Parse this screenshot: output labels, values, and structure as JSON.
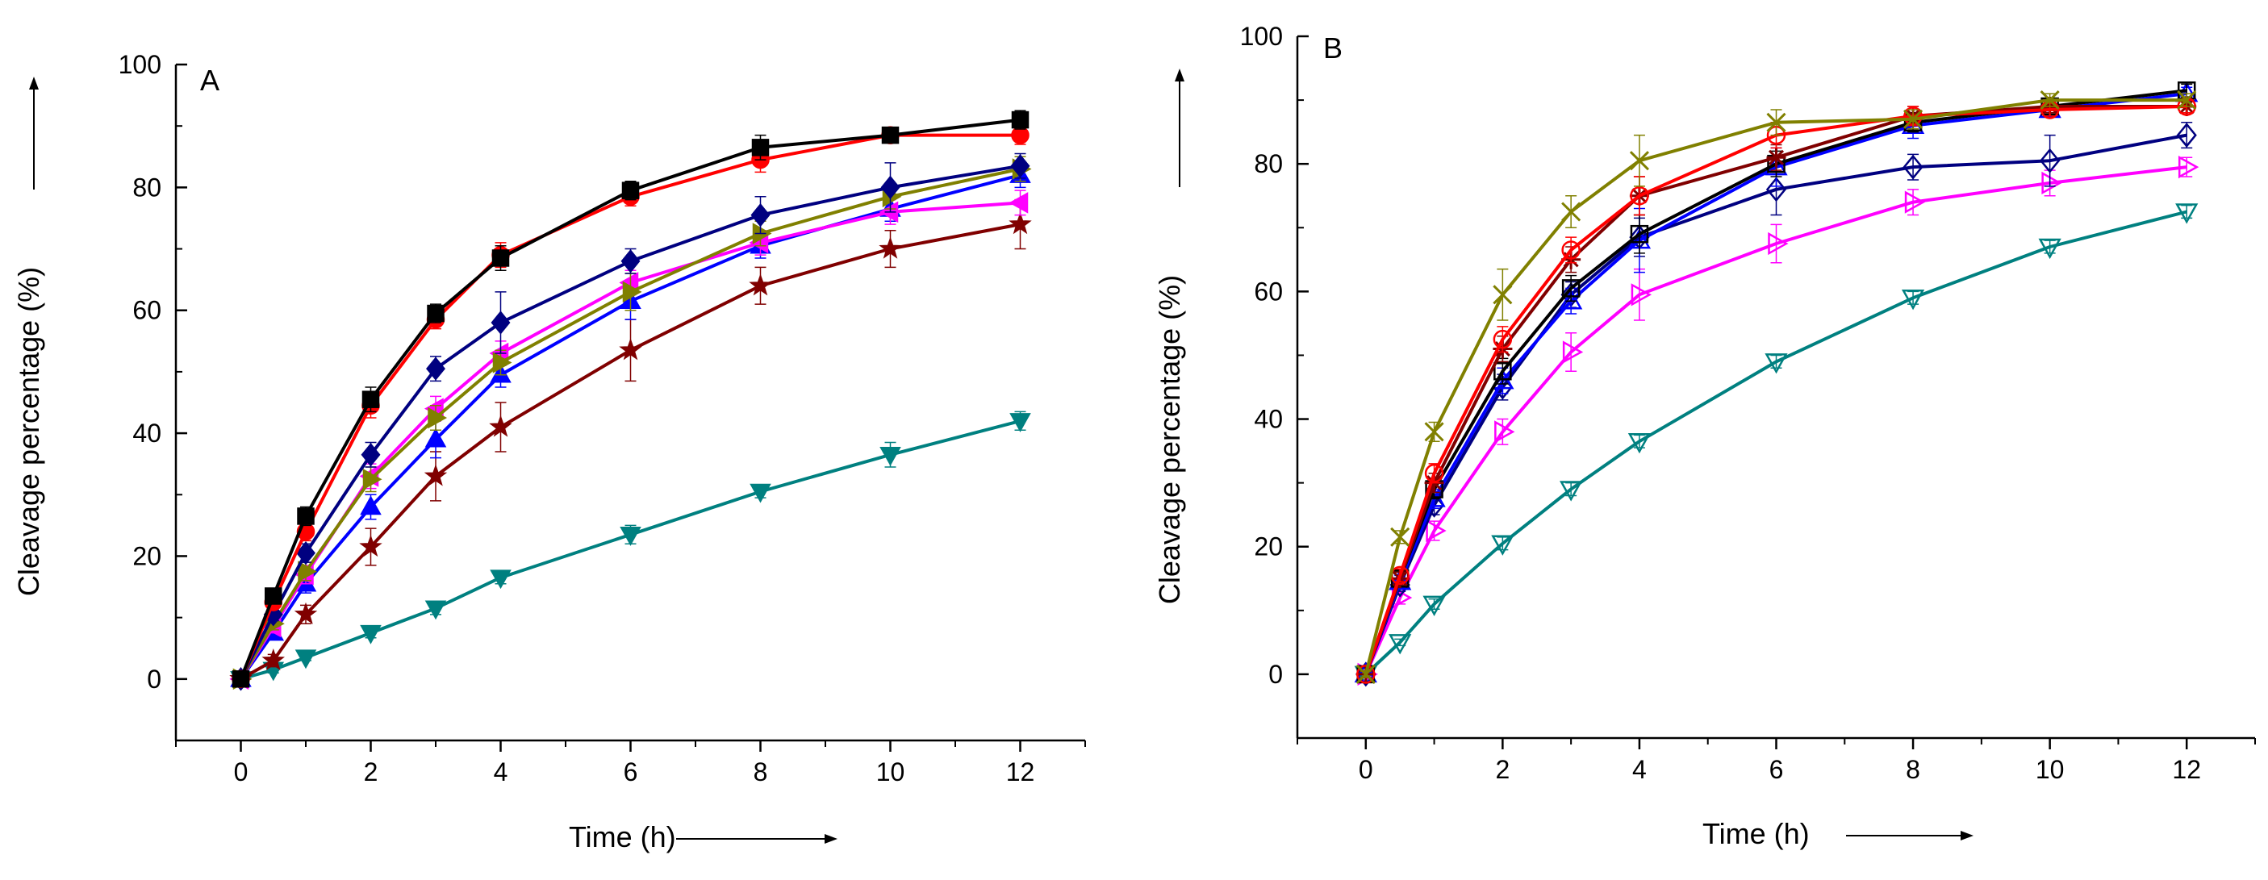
{
  "chart_data": [
    {
      "type": "line",
      "panel_label": "A",
      "xlabel": "Time (h)",
      "ylabel": "Cleavage percentage (%)",
      "xlim": [
        -1,
        13
      ],
      "ylim": [
        -10,
        100
      ],
      "x_ticks": [
        "0",
        "2",
        "4",
        "6",
        "8",
        "10",
        "12"
      ],
      "y_ticks": [
        "0",
        "20",
        "40",
        "60",
        "80",
        "100"
      ],
      "marker_fill": "filled",
      "x": [
        0,
        0.5,
        1,
        2,
        3,
        4,
        6,
        8,
        10,
        12
      ],
      "series": [
        {
          "name": "square",
          "color": "#000000",
          "marker": "square",
          "values": [
            0,
            13.5,
            26.5,
            45.5,
            59.5,
            68.5,
            79.5,
            86.5,
            88.5,
            91
          ],
          "err": [
            0.5,
            1,
            1.5,
            2,
            1.5,
            2,
            1.5,
            2,
            1,
            1.5
          ]
        },
        {
          "name": "circle",
          "color": "#ff0000",
          "marker": "circle",
          "values": [
            0,
            12.5,
            24,
            44.5,
            58.5,
            69,
            78.5,
            84.5,
            88.5,
            88.5
          ],
          "err": [
            0.5,
            1,
            1.5,
            2,
            1.5,
            2,
            1.5,
            2,
            1,
            1.5
          ]
        },
        {
          "name": "diamond",
          "color": "#000080",
          "marker": "diamond",
          "values": [
            0,
            10.5,
            20.5,
            36.5,
            50.5,
            58,
            68,
            75.5,
            80,
            83.5
          ],
          "err": [
            0.5,
            1,
            1.5,
            2,
            2,
            5,
            2,
            3,
            4,
            2
          ]
        },
        {
          "name": "right-triangle",
          "color": "#808000",
          "marker": "tri-right",
          "values": [
            0,
            9,
            17.5,
            32.5,
            42.5,
            51.5,
            63,
            72.5,
            78.5,
            83
          ],
          "err": [
            0.5,
            1,
            1.5,
            2,
            2,
            2,
            3,
            2,
            2,
            2
          ]
        },
        {
          "name": "left-triangle",
          "color": "#ff00ff",
          "marker": "tri-left",
          "values": [
            0,
            8.5,
            17,
            33,
            44,
            53,
            64.5,
            71,
            76,
            77.5
          ],
          "err": [
            0.5,
            1,
            1.5,
            2,
            2,
            2,
            2,
            2,
            2,
            2
          ]
        },
        {
          "name": "up-triangle",
          "color": "#0000ff",
          "marker": "tri-up",
          "values": [
            0,
            7.5,
            15.5,
            28,
            39,
            49.5,
            61.5,
            70.5,
            76.5,
            82
          ],
          "err": [
            0.5,
            1,
            1.5,
            2,
            3,
            2,
            3,
            2,
            2,
            2
          ]
        },
        {
          "name": "star",
          "color": "#800000",
          "marker": "star",
          "values": [
            0,
            3,
            10.5,
            21.5,
            33,
            41,
            53.5,
            64,
            70,
            74
          ],
          "err": [
            0.5,
            1,
            1.5,
            3,
            4,
            4,
            5,
            3,
            3,
            4
          ]
        },
        {
          "name": "down-triangle",
          "color": "#008080",
          "marker": "tri-down",
          "values": [
            0,
            1.5,
            3.5,
            7.5,
            11.5,
            16.5,
            23.5,
            30.5,
            36.5,
            42
          ],
          "err": [
            0.3,
            0.5,
            0.5,
            0.8,
            1,
            1,
            1.5,
            1,
            2,
            1.5
          ]
        }
      ]
    },
    {
      "type": "line",
      "panel_label": "B",
      "xlabel": "Time (h)",
      "ylabel": "Cleavage percentage (%)",
      "xlim": [
        -1,
        13
      ],
      "ylim": [
        -10,
        100
      ],
      "x_ticks": [
        "0",
        "2",
        "4",
        "6",
        "8",
        "10",
        "12"
      ],
      "y_ticks": [
        "0",
        "20",
        "40",
        "60",
        "80",
        "100"
      ],
      "marker_fill": "open",
      "x": [
        0,
        0.5,
        1,
        2,
        3,
        4,
        6,
        8,
        10,
        12
      ],
      "series": [
        {
          "name": "x-mark",
          "color": "#808000",
          "marker": "x",
          "values": [
            0,
            21.5,
            38,
            59.5,
            72.5,
            80.5,
            86.5,
            87,
            90,
            90
          ],
          "err": [
            0.5,
            1,
            1.5,
            4,
            2.5,
            4,
            2,
            1.5,
            1,
            1
          ]
        },
        {
          "name": "circle-open",
          "color": "#ff0000",
          "marker": "circle",
          "values": [
            0,
            15.5,
            31.5,
            52.5,
            66.5,
            75,
            84.5,
            87.5,
            88.5,
            89
          ],
          "err": [
            0.5,
            1,
            1.5,
            2,
            2,
            3,
            2,
            1.5,
            1,
            1
          ]
        },
        {
          "name": "asterisk",
          "color": "#800000",
          "marker": "asterisk",
          "values": [
            0,
            15,
            30,
            51,
            65,
            75,
            81,
            87.5,
            89,
            89
          ],
          "err": [
            0.5,
            1,
            1.5,
            2,
            2,
            3,
            2,
            1.5,
            1,
            1
          ]
        },
        {
          "name": "square-open",
          "color": "#000000",
          "marker": "square",
          "values": [
            0,
            15,
            29,
            47.5,
            60.5,
            69,
            80,
            86.5,
            89,
            91.5
          ],
          "err": [
            0.5,
            1,
            1.5,
            2,
            2,
            3,
            2,
            1.5,
            1,
            1
          ]
        },
        {
          "name": "up-triangle-open",
          "color": "#0000ff",
          "marker": "tri-up",
          "values": [
            0,
            14.5,
            27.5,
            46,
            58.5,
            68,
            79.5,
            86,
            88.5,
            91
          ],
          "err": [
            0.5,
            1,
            1.5,
            2,
            2,
            5,
            3,
            2,
            1,
            1
          ]
        },
        {
          "name": "diamond-open",
          "color": "#000080",
          "marker": "diamond",
          "values": [
            0,
            14,
            26.5,
            45,
            59.5,
            68.5,
            76,
            79.5,
            80.5,
            84.5
          ],
          "err": [
            0.5,
            1,
            1.5,
            2,
            2,
            3,
            4,
            2,
            4,
            2
          ]
        },
        {
          "name": "right-triangle-open",
          "color": "#ff00ff",
          "marker": "tri-right",
          "values": [
            0,
            12,
            22.5,
            38,
            50.5,
            59.5,
            67.5,
            74,
            77,
            79.5
          ],
          "err": [
            0.5,
            1,
            1.5,
            2,
            3,
            4,
            3,
            2,
            2,
            1.5
          ]
        },
        {
          "name": "down-triangle-open",
          "color": "#008080",
          "marker": "tri-down",
          "values": [
            0,
            5,
            11,
            20.5,
            29,
            36.5,
            49,
            59,
            67,
            72.5
          ],
          "err": [
            0.3,
            0.5,
            0.8,
            1,
            1,
            1,
            1,
            1,
            1,
            1
          ]
        }
      ]
    }
  ]
}
